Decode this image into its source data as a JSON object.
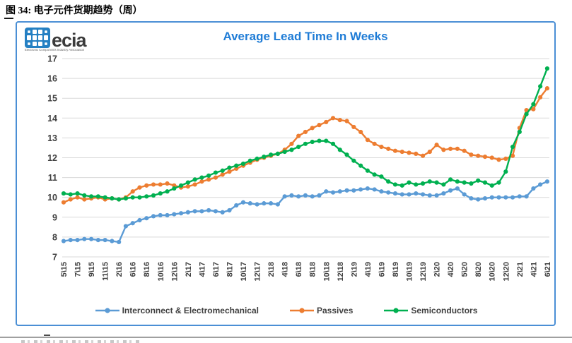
{
  "page": {
    "figure_caption": "图 34:  电子元件货期趋势（周）"
  },
  "chart": {
    "logo": {
      "word": "ecia",
      "tagline": "Electronic Components Industry Association",
      "mark_color": "#2580C3"
    },
    "title_color": "#1F7CD6",
    "border_color": "#4B8FD5",
    "grid_color": "#d9d9d9",
    "axis_text_color": "#404040"
  },
  "chart_data": {
    "type": "line",
    "title": "Average Lead Time In Weeks",
    "xlabel": "",
    "ylabel": "",
    "ylim": [
      7,
      17
    ],
    "y_ticks": [
      7,
      8,
      9,
      10,
      11,
      12,
      13,
      14,
      15,
      16,
      17
    ],
    "grid": "horizontal",
    "legend_position": "bottom",
    "x_tick_labels": [
      "5\\15",
      "7\\15",
      "9\\15",
      "11\\15",
      "2\\16",
      "6\\16",
      "8\\16",
      "10\\16",
      "12\\16",
      "2\\17",
      "4\\17",
      "6\\17",
      "8\\17",
      "10\\17",
      "12\\17",
      "2\\18",
      "4\\18",
      "6\\18",
      "8\\18",
      "10\\18",
      "12\\18",
      "2\\19",
      "4\\19",
      "6\\19",
      "8\\19",
      "10\\19",
      "12\\19",
      "2\\20",
      "4\\20",
      "5\\20",
      "8\\20",
      "10\\20",
      "12\\20",
      "2\\21",
      "4\\21",
      "6\\21"
    ],
    "points_per_tick": 2,
    "series": [
      {
        "name": "Interconnect & Electromechanical",
        "color": "#5B9BD5",
        "values": [
          7.8,
          7.85,
          7.85,
          7.9,
          7.9,
          7.85,
          7.85,
          7.8,
          7.75,
          8.55,
          8.7,
          8.85,
          8.95,
          9.05,
          9.1,
          9.1,
          9.15,
          9.2,
          9.25,
          9.3,
          9.3,
          9.35,
          9.3,
          9.25,
          9.35,
          9.6,
          9.75,
          9.7,
          9.65,
          9.7,
          9.7,
          9.65,
          10.05,
          10.1,
          10.05,
          10.1,
          10.05,
          10.1,
          10.3,
          10.25,
          10.3,
          10.35,
          10.35,
          10.4,
          10.45,
          10.4,
          10.3,
          10.25,
          10.2,
          10.15,
          10.15,
          10.2,
          10.15,
          10.1,
          10.1,
          10.2,
          10.35,
          10.45,
          10.15,
          9.95,
          9.9,
          9.95,
          10,
          10,
          10,
          10,
          10.05,
          10.05,
          10.45,
          10.65,
          10.8
        ]
      },
      {
        "name": "Passives",
        "color": "#ED7D31",
        "values": [
          9.75,
          9.9,
          10,
          9.9,
          9.95,
          10,
          9.9,
          9.95,
          9.9,
          10,
          10.3,
          10.5,
          10.6,
          10.65,
          10.65,
          10.7,
          10.6,
          10.5,
          10.55,
          10.65,
          10.8,
          10.9,
          11,
          11.15,
          11.3,
          11.45,
          11.6,
          11.75,
          11.9,
          12,
          12.1,
          12.2,
          12.4,
          12.7,
          13.1,
          13.3,
          13.5,
          13.65,
          13.8,
          14,
          13.9,
          13.85,
          13.55,
          13.3,
          12.9,
          12.7,
          12.55,
          12.45,
          12.35,
          12.3,
          12.25,
          12.2,
          12.1,
          12.3,
          12.65,
          12.4,
          12.45,
          12.45,
          12.35,
          12.15,
          12.1,
          12.05,
          12,
          11.9,
          11.95,
          12.1,
          13.5,
          14.4,
          14.45,
          15.05,
          15.5
        ]
      },
      {
        "name": "Semiconductors",
        "color": "#00B050",
        "values": [
          10.2,
          10.15,
          10.2,
          10.1,
          10.05,
          10.05,
          10,
          9.95,
          9.9,
          9.95,
          10,
          10,
          10.05,
          10.1,
          10.2,
          10.3,
          10.45,
          10.6,
          10.75,
          10.9,
          11,
          11.1,
          11.25,
          11.35,
          11.5,
          11.6,
          11.7,
          11.85,
          11.95,
          12.05,
          12.15,
          12.2,
          12.3,
          12.4,
          12.55,
          12.7,
          12.8,
          12.85,
          12.85,
          12.7,
          12.4,
          12.15,
          11.85,
          11.6,
          11.35,
          11.15,
          11.05,
          10.8,
          10.65,
          10.6,
          10.75,
          10.65,
          10.7,
          10.8,
          10.75,
          10.65,
          10.9,
          10.8,
          10.75,
          10.7,
          10.85,
          10.75,
          10.6,
          10.75,
          11.3,
          12.55,
          13.3,
          14.2,
          14.7,
          15.6,
          16.5
        ]
      }
    ]
  }
}
